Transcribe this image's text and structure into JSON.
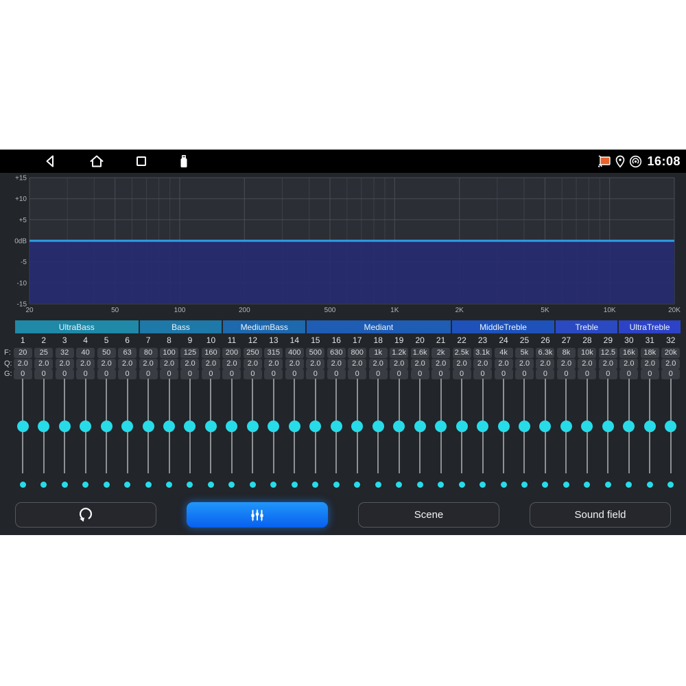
{
  "status_bar": {
    "time": "16:08",
    "nav_icons": [
      "back-icon",
      "home-icon",
      "recents-icon",
      "usb-icon"
    ],
    "right_icons": [
      "cast-icon",
      "location-icon",
      "hotspot-icon"
    ]
  },
  "chart_data": {
    "type": "line",
    "title": "Equalizer frequency response (flat 0 dB curve, area filled below line)",
    "x_scale": "log",
    "x_min": 20,
    "x_max": 20000,
    "x_major_ticks": [
      20,
      50,
      100,
      200,
      500,
      1000,
      2000,
      5000,
      10000,
      20000
    ],
    "x_major_labels": [
      "20",
      "50",
      "100",
      "200",
      "500",
      "1K",
      "2K",
      "5K",
      "10K",
      "20K"
    ],
    "x_minor_ticks": [
      30,
      40,
      60,
      70,
      80,
      90,
      300,
      400,
      600,
      700,
      800,
      900,
      3000,
      4000,
      6000,
      7000,
      8000,
      9000
    ],
    "y_min": -15,
    "y_max": 15,
    "y_ticks": [
      15,
      10,
      5,
      0,
      -5,
      -10,
      -15
    ],
    "y_tick_labels": [
      "+15",
      "+10",
      "+5",
      "0dB",
      "-5",
      "-10",
      "-15"
    ],
    "flat_line_db": 0,
    "line_color": "#2f9fe8",
    "fill_color": "rgba(38,42,118,0.85)",
    "grid_color": "#4b4f56",
    "bg_color": "#2b2e35",
    "label_color": "#b4b8be",
    "legend": "none",
    "grid": true
  },
  "band_groups": [
    {
      "label": "UltraBass",
      "bands": 6,
      "color": "#1f89a7"
    },
    {
      "label": "Bass",
      "bands": 4,
      "color": "#1e79a8"
    },
    {
      "label": "MediumBass",
      "bands": 4,
      "color": "#1e68ad"
    },
    {
      "label": "Mediant",
      "bands": 7,
      "color": "#1f5cb3"
    },
    {
      "label": "MiddleTreble",
      "bands": 5,
      "color": "#1e52ba"
    },
    {
      "label": "Treble",
      "bands": 3,
      "color": "#2b4ac1"
    },
    {
      "label": "UltraTreble",
      "bands": 3,
      "color": "#2d43c7"
    }
  ],
  "row_labels": {
    "f": "F:",
    "q": "Q:",
    "g": "G:"
  },
  "eq_bands": [
    {
      "n": "1",
      "f": "20",
      "q": "2.0",
      "g": "0",
      "slider_db": 0
    },
    {
      "n": "2",
      "f": "25",
      "q": "2.0",
      "g": "0",
      "slider_db": 0
    },
    {
      "n": "3",
      "f": "32",
      "q": "2.0",
      "g": "0",
      "slider_db": 0
    },
    {
      "n": "4",
      "f": "40",
      "q": "2.0",
      "g": "0",
      "slider_db": 0
    },
    {
      "n": "5",
      "f": "50",
      "q": "2.0",
      "g": "0",
      "slider_db": 0
    },
    {
      "n": "6",
      "f": "63",
      "q": "2.0",
      "g": "0",
      "slider_db": 0
    },
    {
      "n": "7",
      "f": "80",
      "q": "2.0",
      "g": "0",
      "slider_db": 0
    },
    {
      "n": "8",
      "f": "100",
      "q": "2.0",
      "g": "0",
      "slider_db": 0
    },
    {
      "n": "9",
      "f": "125",
      "q": "2.0",
      "g": "0",
      "slider_db": 0
    },
    {
      "n": "10",
      "f": "160",
      "q": "2.0",
      "g": "0",
      "slider_db": 0
    },
    {
      "n": "11",
      "f": "200",
      "q": "2.0",
      "g": "0",
      "slider_db": 0
    },
    {
      "n": "12",
      "f": "250",
      "q": "2.0",
      "g": "0",
      "slider_db": 0
    },
    {
      "n": "13",
      "f": "315",
      "q": "2.0",
      "g": "0",
      "slider_db": 0
    },
    {
      "n": "14",
      "f": "400",
      "q": "2.0",
      "g": "0",
      "slider_db": 0
    },
    {
      "n": "15",
      "f": "500",
      "q": "2.0",
      "g": "0",
      "slider_db": 0
    },
    {
      "n": "16",
      "f": "630",
      "q": "2.0",
      "g": "0",
      "slider_db": 0
    },
    {
      "n": "17",
      "f": "800",
      "q": "2.0",
      "g": "0",
      "slider_db": 0
    },
    {
      "n": "18",
      "f": "1k",
      "q": "2.0",
      "g": "0",
      "slider_db": 0
    },
    {
      "n": "19",
      "f": "1.2k",
      "q": "2.0",
      "g": "0",
      "slider_db": 0
    },
    {
      "n": "20",
      "f": "1.6k",
      "q": "2.0",
      "g": "0",
      "slider_db": 0
    },
    {
      "n": "21",
      "f": "2k",
      "q": "2.0",
      "g": "0",
      "slider_db": 0
    },
    {
      "n": "22",
      "f": "2.5k",
      "q": "2.0",
      "g": "0",
      "slider_db": 0
    },
    {
      "n": "23",
      "f": "3.1k",
      "q": "2.0",
      "g": "0",
      "slider_db": 0
    },
    {
      "n": "24",
      "f": "4k",
      "q": "2.0",
      "g": "0",
      "slider_db": 0
    },
    {
      "n": "25",
      "f": "5k",
      "q": "2.0",
      "g": "0",
      "slider_db": 0
    },
    {
      "n": "26",
      "f": "6.3k",
      "q": "2.0",
      "g": "0",
      "slider_db": 0
    },
    {
      "n": "27",
      "f": "8k",
      "q": "2.0",
      "g": "0",
      "slider_db": 0
    },
    {
      "n": "28",
      "f": "10k",
      "q": "2.0",
      "g": "0",
      "slider_db": 0
    },
    {
      "n": "29",
      "f": "12.5",
      "q": "2.0",
      "g": "0",
      "slider_db": 0
    },
    {
      "n": "30",
      "f": "16k",
      "q": "2.0",
      "g": "0",
      "slider_db": 0
    },
    {
      "n": "31",
      "f": "18k",
      "q": "2.0",
      "g": "0",
      "slider_db": 0
    },
    {
      "n": "32",
      "f": "20k",
      "q": "2.0",
      "g": "0",
      "slider_db": 0
    }
  ],
  "slider": {
    "thumb_color": "#27dce8",
    "track_color": "#8d9095",
    "range_db": [
      -15,
      15
    ]
  },
  "buttons": {
    "reset": {
      "icon": "reset-icon"
    },
    "equalizer": {
      "icon": "equalizer-icon",
      "active": true,
      "accent": "#0f7bf5"
    },
    "scene": {
      "label": "Scene"
    },
    "sound_field": {
      "label": "Sound field"
    }
  }
}
